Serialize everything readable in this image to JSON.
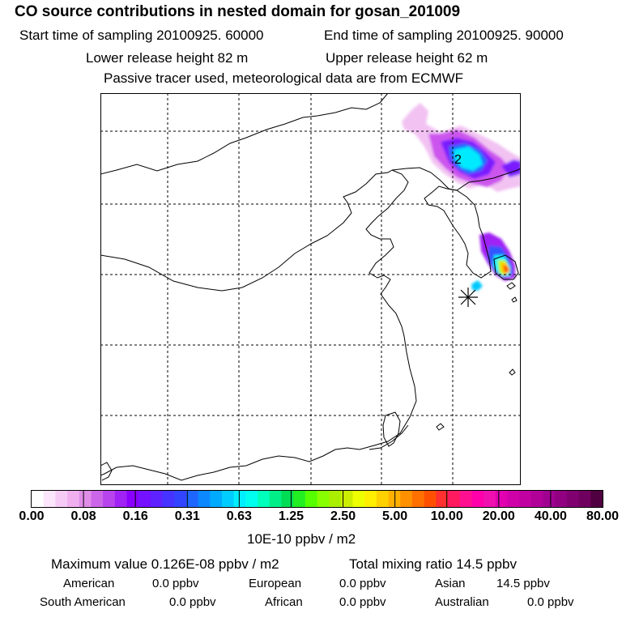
{
  "header": {
    "title": "CO  source contributions in nested domain for gosan_201009",
    "start_label": "Start time of sampling 20100925. 60000",
    "end_label": "End time of sampling 20100925. 90000",
    "lower_label": "Lower release height   82 m",
    "upper_label": "Upper release height   62 m",
    "tracer_note": "Passive tracer used, meteorological data are from ECMWF"
  },
  "map": {
    "contour_label": "2",
    "receptor_symbol": "station-star"
  },
  "legend": {
    "tick_labels": [
      "0.00",
      "0.08",
      "0.16",
      "0.31",
      "0.63",
      "1.25",
      "2.50",
      "5.00",
      "10.00",
      "20.00",
      "40.00",
      "80.00"
    ],
    "unit": "10E-10 ppbv / m2",
    "colors": [
      "#ffffff",
      "#fbe6fb",
      "#f6ccf6",
      "#f0b0f0",
      "#e08de8",
      "#cc66e8",
      "#b844ee",
      "#a022f4",
      "#8a00ff",
      "#7411ff",
      "#5e22ff",
      "#4633ff",
      "#3344ff",
      "#1f66ff",
      "#0c88ff",
      "#00aaff",
      "#00ccff",
      "#00eeff",
      "#00ffee",
      "#00ffbb",
      "#00ee88",
      "#00dd55",
      "#22ee22",
      "#55ff00",
      "#88ff00",
      "#aaee00",
      "#ccee00",
      "#eeff00",
      "#ffee00",
      "#ffd000",
      "#ffb000",
      "#ff9000",
      "#ff7000",
      "#ff5000",
      "#ff3030",
      "#ff1a60",
      "#ff1090",
      "#ff00aa",
      "#f010b0",
      "#e000b0",
      "#d000a8",
      "#c000a0",
      "#b00098",
      "#a00090",
      "#900080",
      "#800070",
      "#700060",
      "#500040"
    ]
  },
  "stats": {
    "max_text": "Maximum value  0.126E-08 ppbv / m2",
    "total_text": "Total mixing ratio       14.5 ppbv",
    "rows": [
      [
        {
          "label": "American",
          "value": "0.0 ppbv"
        },
        {
          "label": "European",
          "value": "0.0 ppbv"
        },
        {
          "label": "Asian",
          "value": "14.5 ppbv"
        }
      ],
      [
        {
          "label": "South American",
          "value": "0.0 ppbv"
        },
        {
          "label": "African",
          "value": "0.0 ppbv"
        },
        {
          "label": "Australian",
          "value": "0.0 ppbv"
        }
      ]
    ]
  }
}
